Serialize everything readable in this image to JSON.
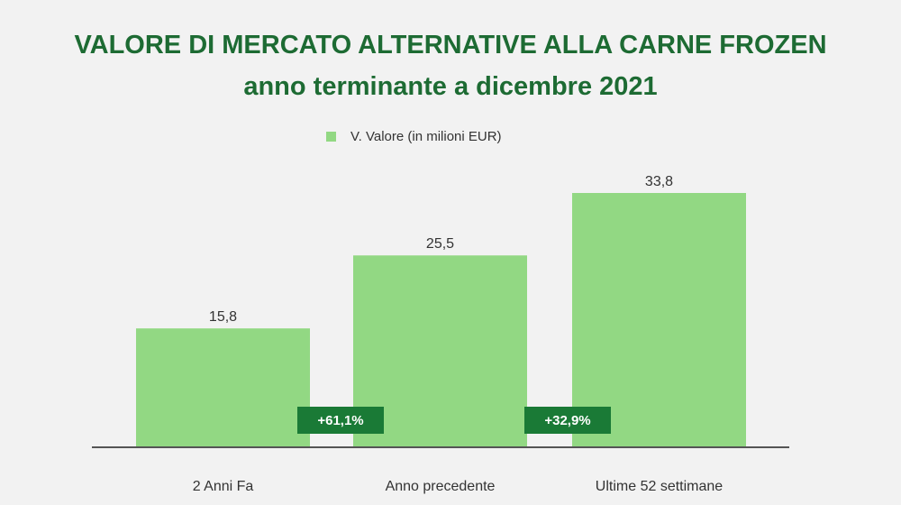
{
  "header": {
    "title_line1": "VALORE DI MERCATO ALTERNATIVE ALLA CARNE FROZEN",
    "title_line2": "anno terminante a dicembre 2021"
  },
  "colors": {
    "bar": "#92d883",
    "badge": "#1a7a36",
    "title": "#1d6b33"
  },
  "chart_data": {
    "type": "bar",
    "title": "VALORE DI MERCATO ALTERNATIVE ALLA CARNE FROZEN anno terminante a dicembre 2021",
    "categories": [
      "2 Anni Fa",
      "Anno precedente",
      "Ultime 52 settimane"
    ],
    "series": [
      {
        "name": "V. Valore (in milioni EUR)",
        "values": [
          15.8,
          25.5,
          33.8
        ],
        "value_labels": [
          "15,8",
          "25,5",
          "33,8"
        ]
      }
    ],
    "growth_badges": [
      "+61,1%",
      "+32,9%"
    ],
    "ylim": [
      0,
      37
    ],
    "grid": false,
    "legend": "top-center",
    "xlabel": "",
    "ylabel": ""
  }
}
